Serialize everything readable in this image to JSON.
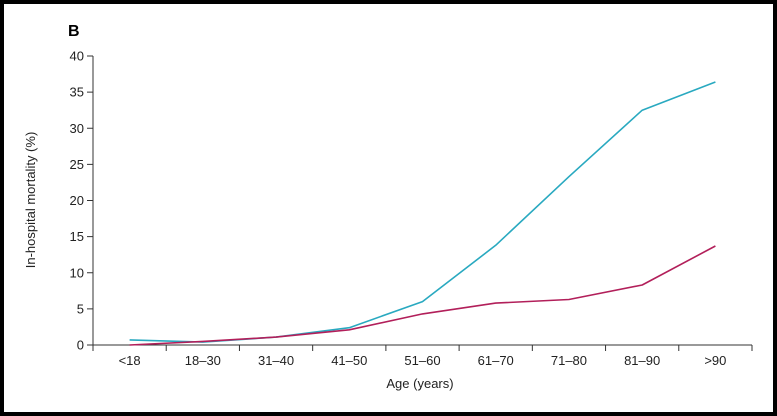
{
  "chart_data": {
    "type": "line",
    "panel_label": "B",
    "title": "",
    "xlabel": "Age (years)",
    "ylabel": "In-hospital mortality (%)",
    "categories": [
      "<18",
      "18–30",
      "31–40",
      "41–50",
      "51–60",
      "61–70",
      "71–80",
      "81–90",
      ">90"
    ],
    "ylim": [
      0,
      40
    ],
    "yticks": [
      0,
      5,
      10,
      15,
      20,
      25,
      30,
      35,
      40
    ],
    "grid": false,
    "series": [
      {
        "color": "#29a9c0",
        "values": [
          0.7,
          0.4,
          1.1,
          2.4,
          6.0,
          13.8,
          23.3,
          32.5,
          36.4
        ]
      },
      {
        "color": "#b21f5a",
        "values": [
          0.0,
          0.5,
          1.1,
          2.1,
          4.3,
          5.8,
          6.3,
          8.3,
          13.7
        ]
      }
    ]
  }
}
